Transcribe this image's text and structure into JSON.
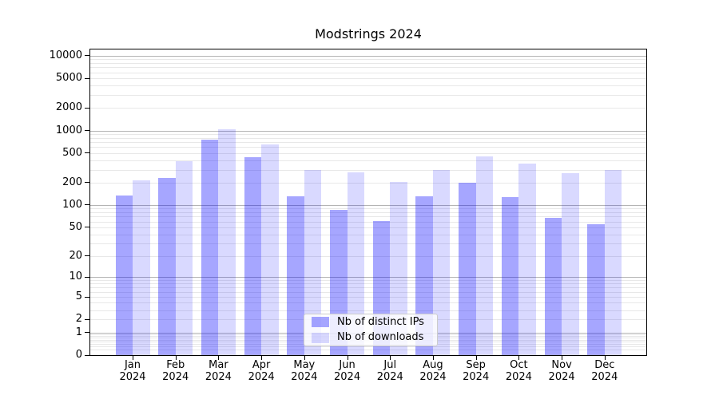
{
  "chart_data": {
    "type": "bar",
    "title": "Modstrings 2024",
    "categories": [
      "Jan 2024",
      "Feb 2024",
      "Mar 2024",
      "Apr 2024",
      "May 2024",
      "Jun 2024",
      "Jul 2024",
      "Aug 2024",
      "Sep 2024",
      "Oct 2024",
      "Nov 2024",
      "Dec 2024"
    ],
    "series": [
      {
        "name": "Nb of distinct IPs",
        "color": "rgba(0,0,255,0.35)",
        "values": [
          135,
          230,
          755,
          440,
          131,
          86,
          61,
          132,
          202,
          127,
          67,
          55
        ]
      },
      {
        "name": "Nb of downloads",
        "color": "rgba(0,0,255,0.15)",
        "values": [
          215,
          390,
          1050,
          650,
          300,
          272,
          205,
          300,
          450,
          365,
          270,
          295
        ]
      }
    ],
    "x_axis": {
      "label": "",
      "tick_labels_two_line": true
    },
    "y_axis": {
      "label": "",
      "scale": "log10(1+x)",
      "ticks": [
        10000,
        5000,
        2000,
        1000,
        500,
        200,
        100,
        50,
        20,
        10,
        5,
        2,
        1,
        0
      ],
      "range_top": 12500
    },
    "grid": {
      "on": true,
      "major_color": "#b4b4b4",
      "minor_color": "#e8e8e8"
    },
    "legend": {
      "position": "lower-center",
      "entries": [
        "Nb of distinct IPs",
        "Nb of downloads"
      ]
    }
  }
}
